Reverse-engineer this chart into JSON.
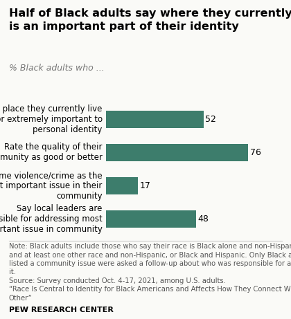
{
  "title": "Half of Black adults say where they currently live\nis an important part of their identity",
  "subtitle": "% Black adults who ...",
  "categories": [
    "Say the place they currently live\nis very or extremely important to\npersonal identity",
    "Rate the quality of their\ncommunity as good or better",
    "Name violence/crime as the\nmost important issue in their\ncommunity",
    "Say local leaders are\nresponsible for addressing most\nimportant issue in community"
  ],
  "values": [
    52,
    76,
    17,
    48
  ],
  "bar_color": "#3d7d6c",
  "xlim": [
    0,
    88
  ],
  "note_line1": "Note: Black adults include those who say their race is Black alone and non-Hispanic, Black",
  "note_line2": "and at least one other race and non-Hispanic, or Black and Hispanic. Only Black adults who",
  "note_line3": "listed a community issue were asked a follow-up about who was responsible for addressing",
  "note_line4": "it.",
  "note_line5": "Source: Survey conducted Oct. 4-17, 2021, among U.S. adults.",
  "note_line6": "“Race Is Central to Identity for Black Americans and Affects How They Connect With Each",
  "note_line7": "Other”",
  "footer": "PEW RESEARCH CENTER",
  "background_color": "#fafaf7",
  "title_fontsize": 11.5,
  "subtitle_fontsize": 9,
  "label_fontsize": 8.5,
  "value_fontsize": 9,
  "note_fontsize": 7.2,
  "footer_fontsize": 8
}
